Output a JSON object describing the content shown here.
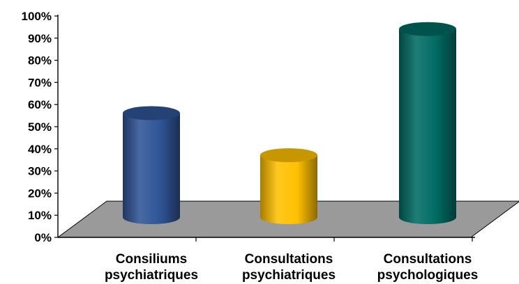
{
  "chart_data": {
    "type": "bar",
    "style": "3d-cylinder",
    "categories": [
      [
        "Consiliums",
        "psychiatriques"
      ],
      [
        "Consultations",
        "psychiatriques"
      ],
      [
        "Consultations",
        "psychologiques"
      ]
    ],
    "values": [
      47,
      28,
      85
    ],
    "bar_colors": [
      "#2f5597",
      "#ffc000",
      "#006b63"
    ],
    "floor_color": "#9a9a9a",
    "y_ticks": [
      "0%",
      "10%",
      "20%",
      "30%",
      "40%",
      "50%",
      "60%",
      "70%",
      "80%",
      "90%",
      "100%"
    ],
    "ylim": [
      0,
      100
    ],
    "grid": false,
    "legend": "none"
  }
}
